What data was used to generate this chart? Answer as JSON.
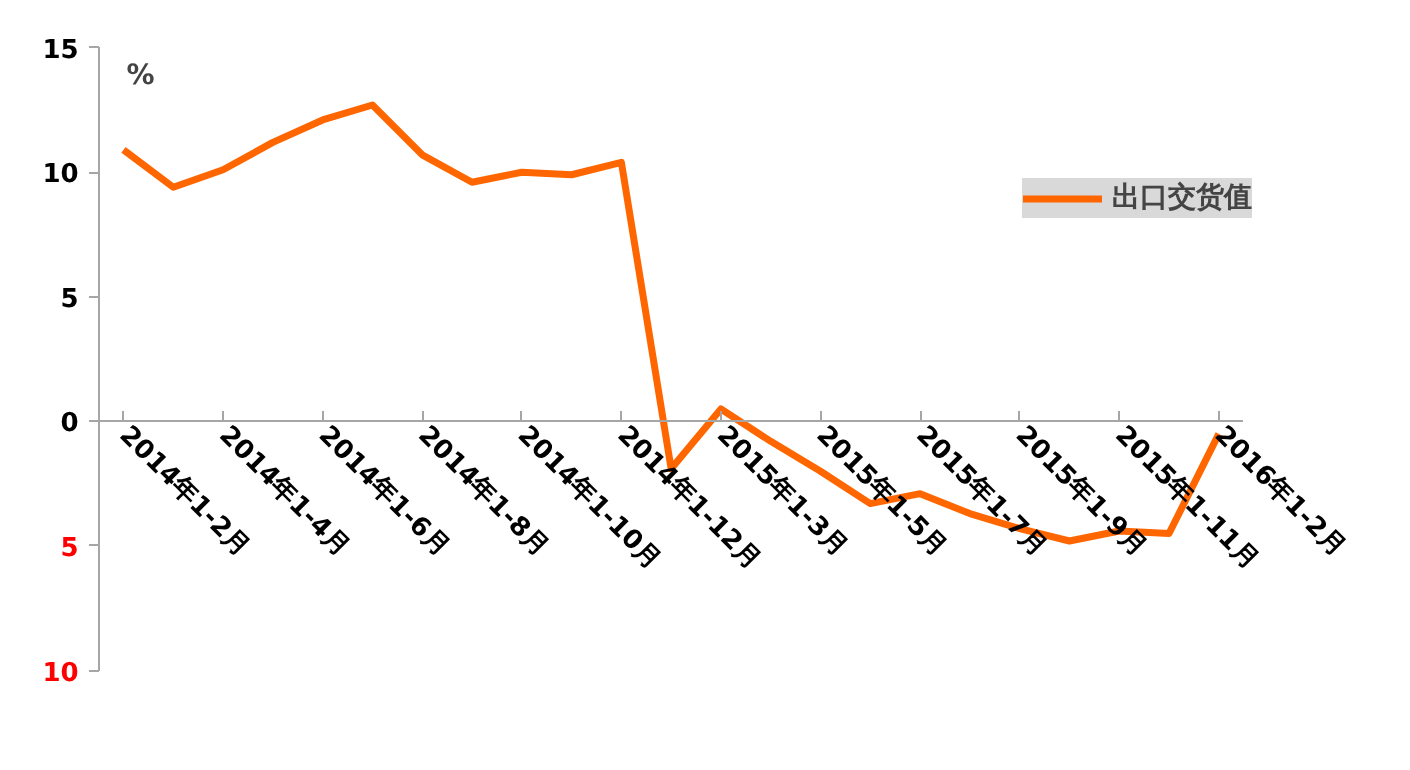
{
  "chart_data": {
    "type": "line",
    "categories": [
      "2014年1-2月",
      null,
      "2014年1-4月",
      null,
      "2014年1-6月",
      null,
      "2014年1-8月",
      null,
      "2014年1-10月",
      null,
      "2014年1-12月",
      null,
      "2015年1-3月",
      null,
      "2015年1-5月",
      null,
      "2015年1-7月",
      null,
      "2015年1-9月",
      null,
      "2015年1-11月",
      null,
      "2016年1-2月"
    ],
    "series": [
      {
        "name": "出口交货值",
        "color": "#ff6600",
        "values": [
          10.9,
          9.4,
          10.1,
          11.2,
          12.1,
          12.7,
          10.7,
          9.6,
          10.0,
          9.9,
          10.4,
          -1.9,
          0.5,
          -0.8,
          -2.0,
          -3.3,
          -2.9,
          -3.7,
          -4.3,
          -4.8,
          -4.4,
          -4.5,
          -0.5
        ]
      }
    ],
    "ylim": [
      -10,
      15
    ],
    "yticks": [
      {
        "value": -10,
        "label": "10"
      },
      {
        "value": -5,
        "label": "5"
      },
      0,
      5,
      10,
      15
    ],
    "annotations": [
      "%"
    ],
    "legend": "top right",
    "grid": false,
    "marker": "none",
    "line_style": "solid"
  }
}
